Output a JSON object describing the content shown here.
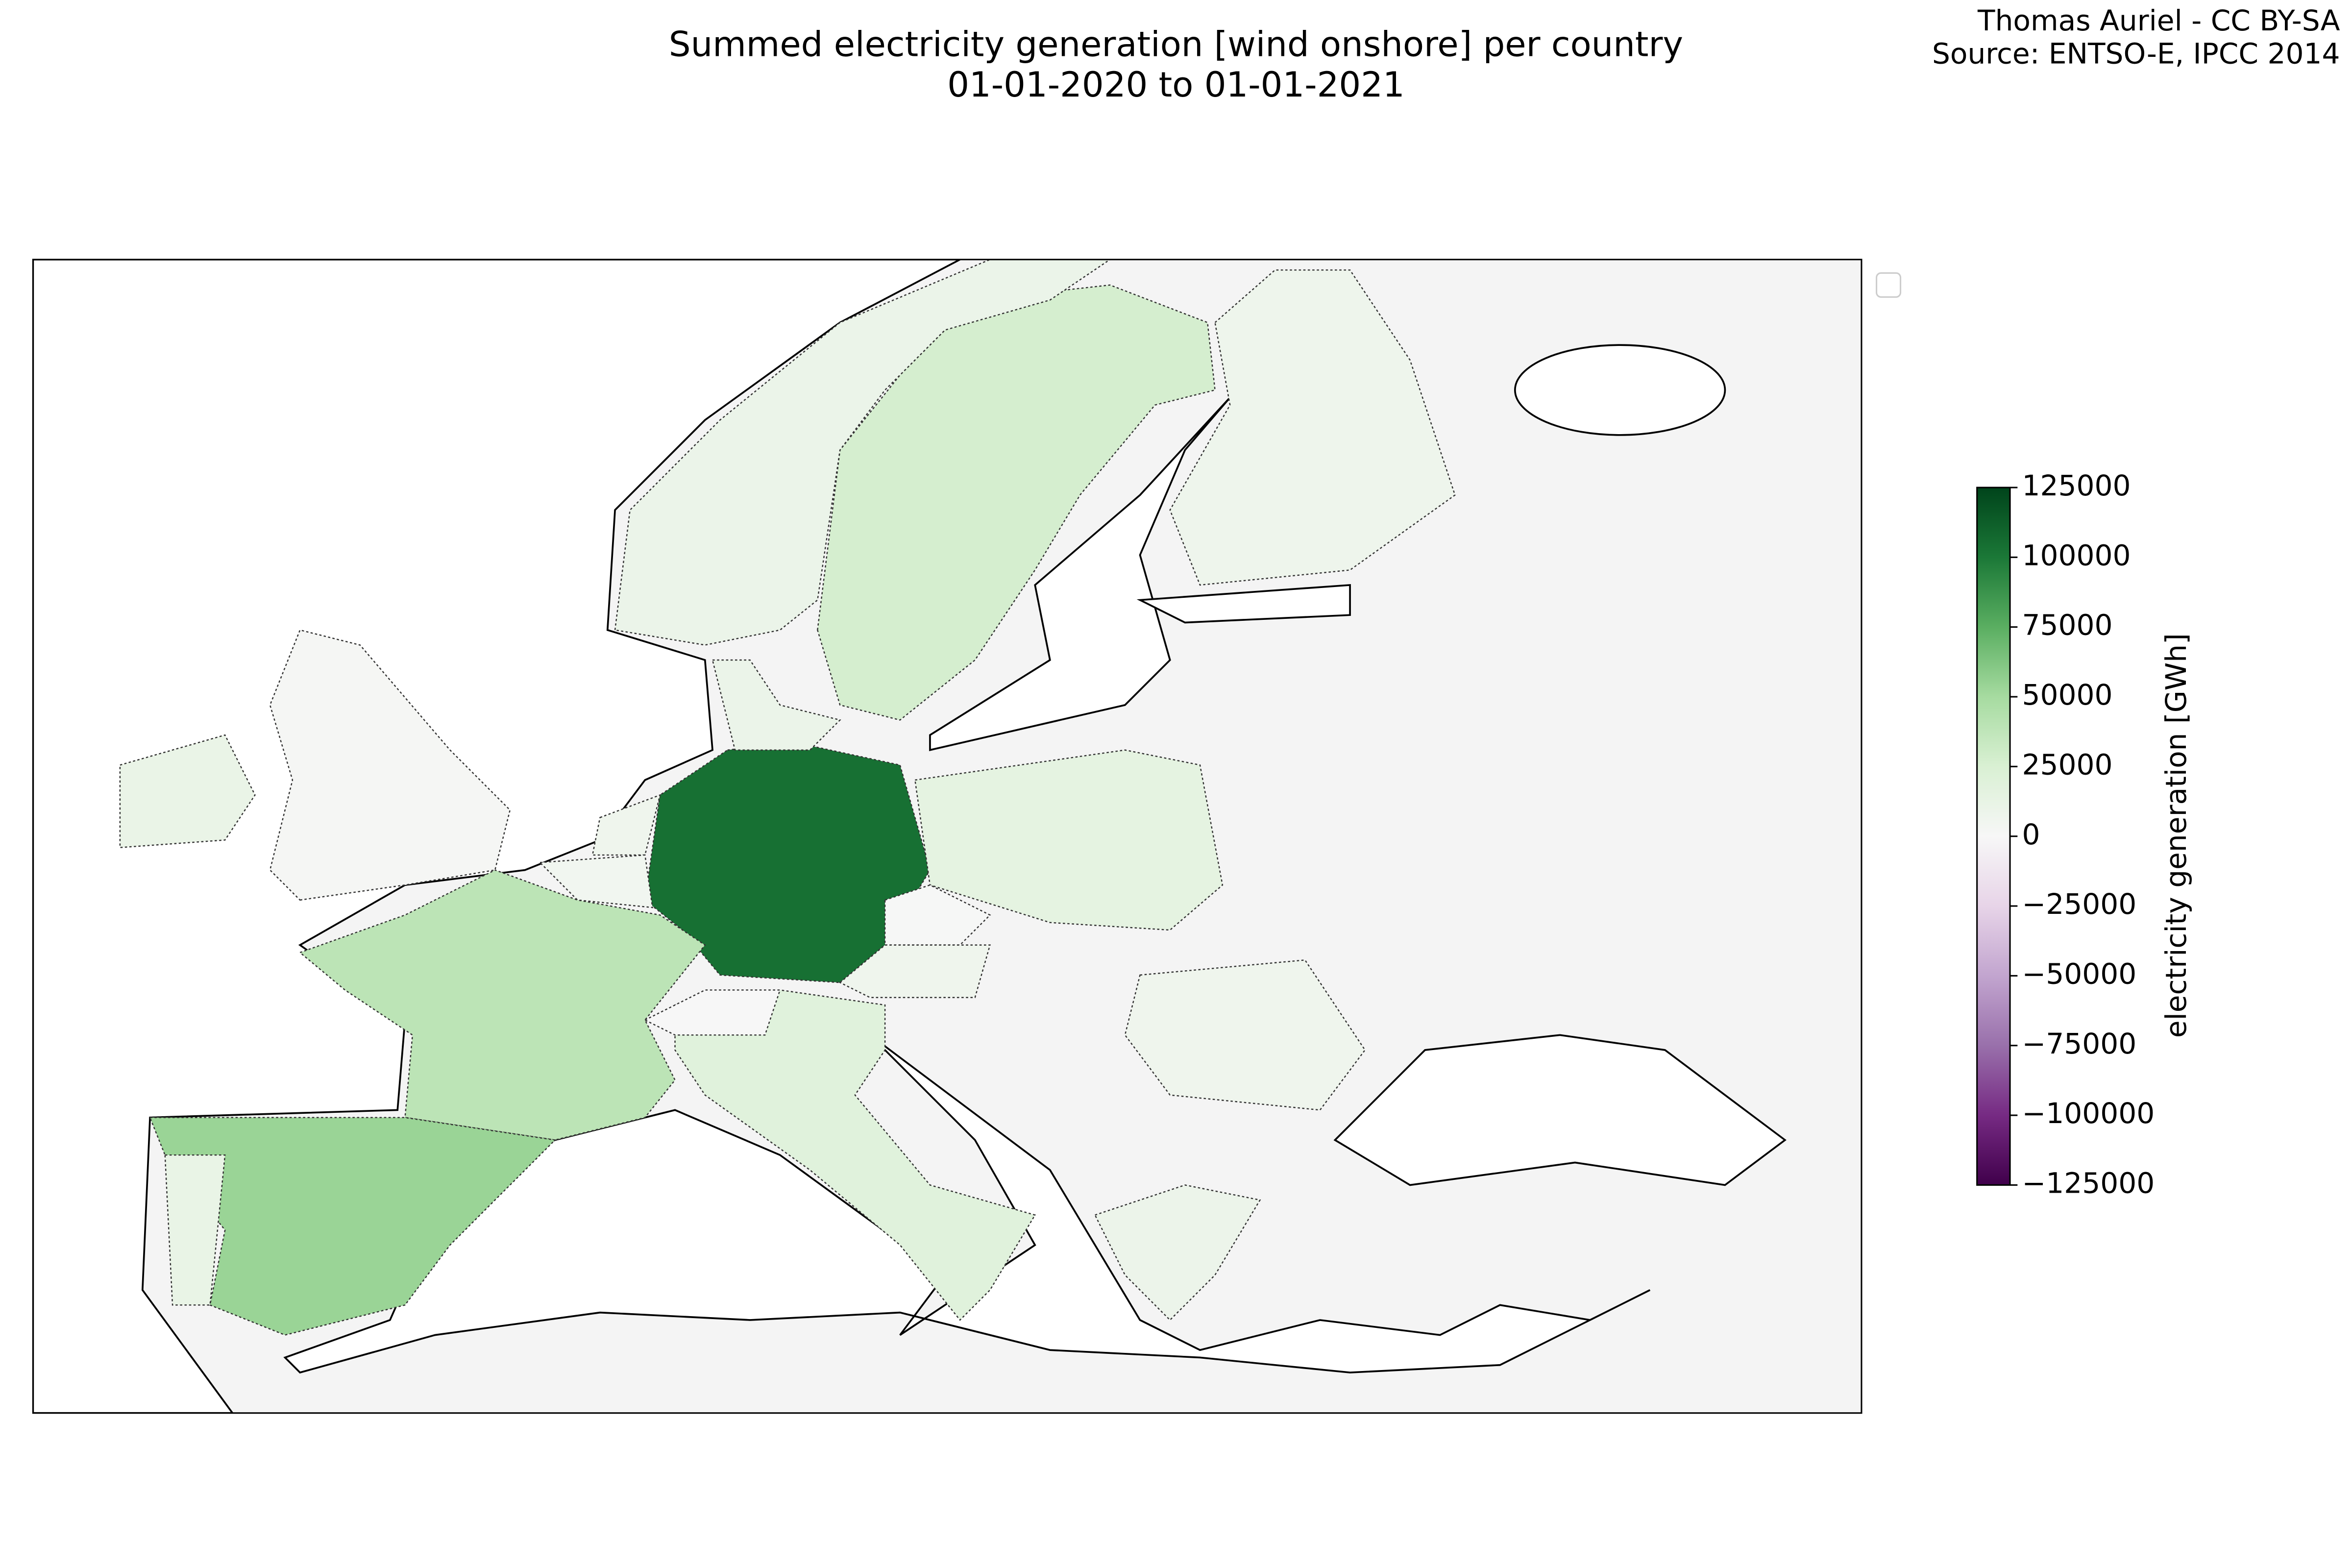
{
  "chart_data": {
    "type": "choropleth",
    "title": "Summed electricity generation [wind onshore] per country",
    "subtitle": "01-01-2020 to 01-01-2021",
    "credit": "Thomas Auriel - CC BY-SA",
    "source": "Source: ENTSO-E, IPCC 2014",
    "colorbar_label": "electricity generation [GWh]",
    "colormap": [
      "#40004b",
      "#762a83",
      "#9970ab",
      "#c2a5cf",
      "#e7d4e8",
      "#f7f7f7",
      "#d9f0d3",
      "#a6dba0",
      "#5aae61",
      "#1b7837",
      "#00441b"
    ],
    "clim": [
      -125000,
      125000
    ],
    "cticks": [
      {
        "value": -125000,
        "label": "−125000"
      },
      {
        "value": -100000,
        "label": "−100000"
      },
      {
        "value": -75000,
        "label": "−75000"
      },
      {
        "value": -50000,
        "label": "−50000"
      },
      {
        "value": -25000,
        "label": "−25000"
      },
      0,
      25000,
      50000,
      75000,
      100000,
      125000
    ],
    "regions": [
      {
        "value": 104000
      },
      {
        "value": 39000
      },
      {
        "value": 54000
      },
      {
        "value": 27000
      },
      {
        "value": 10000
      },
      {
        "value": 7800
      },
      {
        "value": 10000
      },
      {
        "value": 7000
      },
      {
        "value": 5000
      },
      {
        "value": 12000
      },
      {
        "value": 2000
      },
      {
        "value": 11000
      },
      {
        "value": 19000
      },
      {
        "value": 15000
      },
      {
        "value": 700
      },
      {
        "value": 6800
      },
      {
        "value": 7000
      },
      {
        "value": 9000
      },
      {
        "value": 100
      }
    ]
  }
}
